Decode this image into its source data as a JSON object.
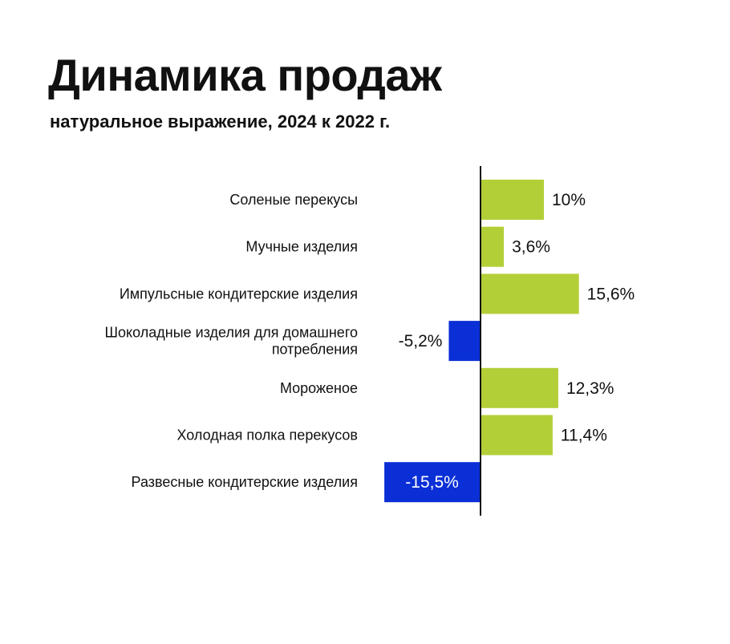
{
  "title": "Динамика продаж",
  "subtitle": "натуральное выражение, 2024 к 2022 г.",
  "chart_data": {
    "type": "bar",
    "orientation": "horizontal",
    "categories": [
      [
        "Соленые перекусы"
      ],
      [
        "Мучные изделия"
      ],
      [
        "Импульсные кондитерские изделия"
      ],
      [
        "Шоколадные изделия для домашнего",
        "потребления"
      ],
      [
        "Мороженое"
      ],
      [
        "Холодная полка перекусов"
      ],
      [
        "Развесные кондитерские изделия"
      ]
    ],
    "values": [
      10,
      3.6,
      15.6,
      -5.2,
      12.3,
      11.4,
      -15.5
    ],
    "value_labels": [
      "10%",
      "3,6%",
      "15,6%",
      "-5,2%",
      "12,3%",
      "11,4%",
      "-15,5%"
    ],
    "colors": {
      "positive": "#b3cf38",
      "negative": "#0a2fd6",
      "axis": "#111111"
    },
    "grid": false,
    "legend": "none"
  }
}
